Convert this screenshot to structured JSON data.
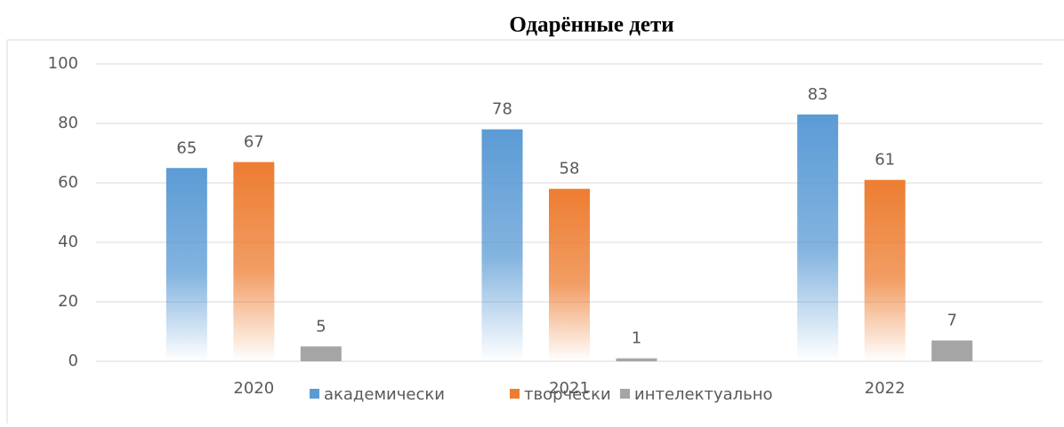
{
  "chart_data": {
    "type": "bar",
    "title": "Одарённые дети",
    "categories": [
      "2020",
      "2021",
      "2022"
    ],
    "series": [
      {
        "name": "академически",
        "color": "#5b9bd5",
        "values": [
          65,
          78,
          83
        ]
      },
      {
        "name": "творчески",
        "color": "#ed7d31",
        "values": [
          67,
          58,
          61
        ]
      },
      {
        "name": "интелектуально",
        "color": "#a5a5a5",
        "values": [
          5,
          1,
          7
        ]
      }
    ],
    "ylim": [
      0,
      100
    ],
    "yticks": [
      0,
      20,
      40,
      60,
      80,
      100
    ],
    "grid": true,
    "legend": "bottom",
    "data_labels": true
  }
}
